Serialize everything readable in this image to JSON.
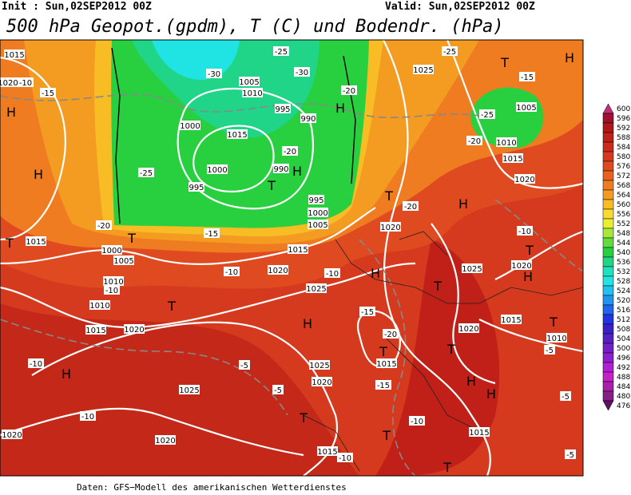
{
  "header": {
    "init": "Init : Sun,02SEP2012 00Z",
    "valid": "Valid: Sun,02SEP2012 00Z",
    "title": "500 hPa Geopot.(gpdm), T (C) und Bodendr. (hPa)"
  },
  "footer": "Daten: GFS−Modell des amerikanischen Wetterdienstes",
  "colorbar": {
    "levels": [
      600,
      596,
      592,
      588,
      584,
      580,
      576,
      572,
      568,
      564,
      560,
      556,
      552,
      548,
      544,
      540,
      536,
      532,
      528,
      524,
      520,
      516,
      512,
      508,
      504,
      500,
      496,
      492,
      488,
      484,
      480,
      476
    ],
    "colors": [
      "#c0307a",
      "#a01030",
      "#b01818",
      "#c02018",
      "#cc2a1c",
      "#d63a1e",
      "#e04a20",
      "#e8621e",
      "#ef7c20",
      "#f49c22",
      "#f8bc24",
      "#fada30",
      "#e6f030",
      "#a8e83c",
      "#60dc40",
      "#28d040",
      "#20d488",
      "#20e0c0",
      "#20e4e4",
      "#20c0f0",
      "#2094f0",
      "#2064f0",
      "#2434e0",
      "#3a20c8",
      "#5420c4",
      "#7020c4",
      "#8c20d0",
      "#b020d4",
      "#c820c8",
      "#a820a8",
      "#862086",
      "#621062"
    ]
  },
  "map": {
    "labels": [
      "1015",
      "1020",
      "-10",
      "H",
      "-15",
      "H",
      "T",
      "1015",
      "-20",
      "T",
      "1000",
      "1005",
      "-15",
      "-10",
      "1010",
      "-10",
      "1010",
      "1015",
      "1020",
      "T",
      "-10",
      "H",
      "1025",
      "-5",
      "1020",
      "-10",
      "1020",
      "-25",
      "-30",
      "1005",
      "1010",
      "-30",
      "995",
      "990",
      "-20",
      "990",
      "H",
      "T",
      "1000",
      "1015",
      "1000",
      "995",
      "-25",
      "995",
      "1000",
      "1005",
      "1015",
      "1020",
      "-10",
      "1025",
      "H",
      "H",
      "-15",
      "-20",
      "T",
      "1015",
      "1025",
      "1020",
      "-15",
      "-5",
      "T",
      "T",
      "1015",
      "-10",
      "T",
      "-10",
      "1015",
      "H",
      "T",
      "1020",
      "T",
      "1025",
      "H",
      "1020",
      "T",
      "-20",
      "1025",
      "-25",
      "T",
      "H",
      "-15",
      "-25",
      "1005",
      "1010",
      "-20",
      "1015",
      "1020",
      "-10",
      "T",
      "1020",
      "H",
      "1015",
      "T",
      "1010",
      "-5",
      "H",
      "-5",
      "-5",
      "-20",
      "H"
    ]
  }
}
